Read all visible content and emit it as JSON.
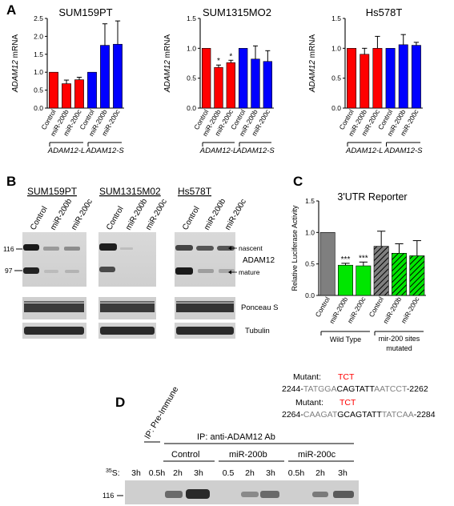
{
  "panel_labels": {
    "a": "A",
    "b": "B",
    "c": "C",
    "d": "D"
  },
  "chart_data": [
    {
      "type": "bar",
      "title": "SUM159PT",
      "ylabel_gene": "ADAM12",
      "ylabel_rest": " mRNA",
      "ylim": [
        0,
        2.5
      ],
      "yticks": [
        "0.0",
        "0.5",
        "1.0",
        "1.5",
        "2.0",
        "2.5"
      ],
      "categories": [
        "Control",
        "miR-200b",
        "miR-200c",
        "Control",
        "miR-200b",
        "miR-200c"
      ],
      "values": [
        1.0,
        0.68,
        0.79,
        1.0,
        1.75,
        1.78
      ],
      "errors": [
        0.0,
        0.1,
        0.07,
        0.0,
        0.6,
        0.65
      ],
      "colors": [
        "#ff0000",
        "#ff0000",
        "#ff0000",
        "#0000ff",
        "#0000ff",
        "#0000ff"
      ],
      "stars": [
        "",
        "",
        "",
        "",
        "",
        ""
      ],
      "groups": [
        "ADAM12-L",
        "ADAM12-S"
      ]
    },
    {
      "type": "bar",
      "title": "SUM1315MO2",
      "ylabel_gene": "ADAM12",
      "ylabel_rest": " mRNA",
      "ylim": [
        0,
        1.5
      ],
      "yticks": [
        "0.0",
        "0.5",
        "1.0",
        "1.5"
      ],
      "categories": [
        "Control",
        "miR-200b",
        "miR-200c",
        "Control",
        "miR-200b",
        "miR-200c"
      ],
      "values": [
        1.0,
        0.68,
        0.76,
        1.0,
        0.82,
        0.78
      ],
      "errors": [
        0.0,
        0.04,
        0.04,
        0.0,
        0.22,
        0.18
      ],
      "colors": [
        "#ff0000",
        "#ff0000",
        "#ff0000",
        "#0000ff",
        "#0000ff",
        "#0000ff"
      ],
      "stars": [
        "",
        "*",
        "*",
        "",
        "",
        ""
      ],
      "groups": [
        "ADAM12-L",
        "ADAM12-S"
      ]
    },
    {
      "type": "bar",
      "title": "Hs578T",
      "ylabel_gene": "ADAM12",
      "ylabel_rest": " mRNA",
      "ylim": [
        0,
        1.5
      ],
      "yticks": [
        "0.0",
        "0.5",
        "1.0",
        "1.5"
      ],
      "categories": [
        "Control",
        "miR-200b",
        "miR-200c",
        "Control",
        "miR-200b",
        "miR-200c"
      ],
      "values": [
        1.0,
        0.9,
        1.0,
        1.0,
        1.06,
        1.05
      ],
      "errors": [
        0.0,
        0.1,
        0.2,
        0.0,
        0.17,
        0.05
      ],
      "colors": [
        "#ff0000",
        "#ff0000",
        "#ff0000",
        "#0000ff",
        "#0000ff",
        "#0000ff"
      ],
      "stars": [
        "",
        "",
        "",
        "",
        "",
        ""
      ],
      "groups": [
        "ADAM12-L",
        "ADAM12-S"
      ]
    },
    {
      "type": "bar",
      "title": "3'UTR Reporter",
      "ylabel": "Relative Luciferase Activity",
      "ylim": [
        0,
        1.5
      ],
      "yticks": [
        "0.0",
        "0.5",
        "1.0",
        "1.5"
      ],
      "categories": [
        "Control",
        "miR-200b",
        "miR-200c",
        "Control",
        "miR-200b",
        "miR-200c"
      ],
      "values": [
        1.0,
        0.48,
        0.47,
        0.78,
        0.67,
        0.63
      ],
      "errors": [
        0.0,
        0.03,
        0.06,
        0.24,
        0.15,
        0.24
      ],
      "colors": [
        "#7f7f7f",
        "#00e600",
        "#00e600",
        "#7f7f7f",
        "#00e600",
        "#00e600"
      ],
      "hatched": [
        false,
        false,
        false,
        true,
        true,
        true
      ],
      "stars": [
        "",
        "***",
        "***",
        "",
        "",
        ""
      ],
      "groups": [
        "Wild Type",
        "mir-200 sites mutated"
      ]
    }
  ],
  "panel_b": {
    "cell_lines": [
      "SUM159PT",
      "SUM1315M02",
      "Hs578T"
    ],
    "lanes": [
      "Control",
      "miR-200b",
      "miR-200c"
    ],
    "mw_116": "116",
    "mw_97": "97",
    "nascent": "nascent",
    "adam12": "ADAM12",
    "mature": "mature",
    "ponceau": "Ponceau S",
    "tubulin": "Tubulin"
  },
  "panel_c_seq": {
    "mutant_label": "Mutant:",
    "mutant_bases": "TCT",
    "seq1": {
      "start": "2244-",
      "gray1": "TATGGA",
      "black": "CAGTATT",
      "gray2": "AATCCT",
      "end": "-2262"
    },
    "seq2": {
      "start": "2264-",
      "gray1": "CAAGAT",
      "black": "GCAGTATT",
      "gray2": "TATCAA",
      "end": "-2284"
    }
  },
  "panel_d": {
    "preimmune": "IP: Pre-Immune",
    "ip_label": "IP: anti-ADAM12 Ab",
    "groups": [
      "Control",
      "miR-200b",
      "miR-200c"
    ],
    "s35_sup": "35",
    "s35_rest": "S:",
    "times": [
      "3h",
      "0.5h",
      "2h",
      "3h",
      "0.5",
      "2h",
      "3h",
      "0.5h",
      "2h",
      "3h"
    ],
    "mw_116": "116"
  }
}
